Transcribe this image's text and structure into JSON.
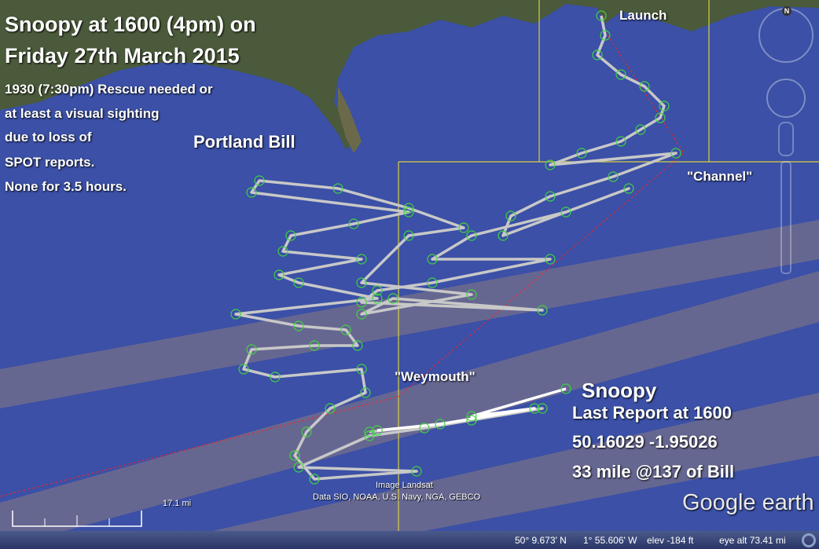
{
  "title_line1": "Snoopy at 1600 (4pm) on",
  "title_line2": "Friday 27th March 2015",
  "note_lines": [
    "1930 (7:30pm) Rescue needed or",
    "at least a visual sighting",
    "due to loss of",
    "SPOT reports.",
    "None for 3.5 hours."
  ],
  "labels": {
    "portland_bill": "Portland Bill",
    "launch": "Launch",
    "channel": "\"Channel\"",
    "weymouth": "\"Weymouth\"",
    "snoopy": "Snoopy",
    "last_report": "Last Report at 1600",
    "coords": "50.16029 -1.95026",
    "distance": "33 mile @137 of Bill"
  },
  "attribution": {
    "image": "Image Landsat",
    "data": "Data SIO, NOAA, U.S. Navy, NGA, GEBCO"
  },
  "scale_label": "17.1 mi",
  "logo": "Google earth",
  "compass_north": "N",
  "status": {
    "lat": "50° 9.673' N",
    "lon": "1° 55.606' W",
    "elev": "elev  -184 ft",
    "eye_alt": "eye alt  73.41 mi"
  },
  "colors": {
    "sea": "#3b50a6",
    "track": "#c8c8c8",
    "fix_marker": "#3fd43f",
    "last_leg": "#ffffff",
    "grid_box": "#d8d040",
    "bearing_line": "#ff2020"
  }
}
